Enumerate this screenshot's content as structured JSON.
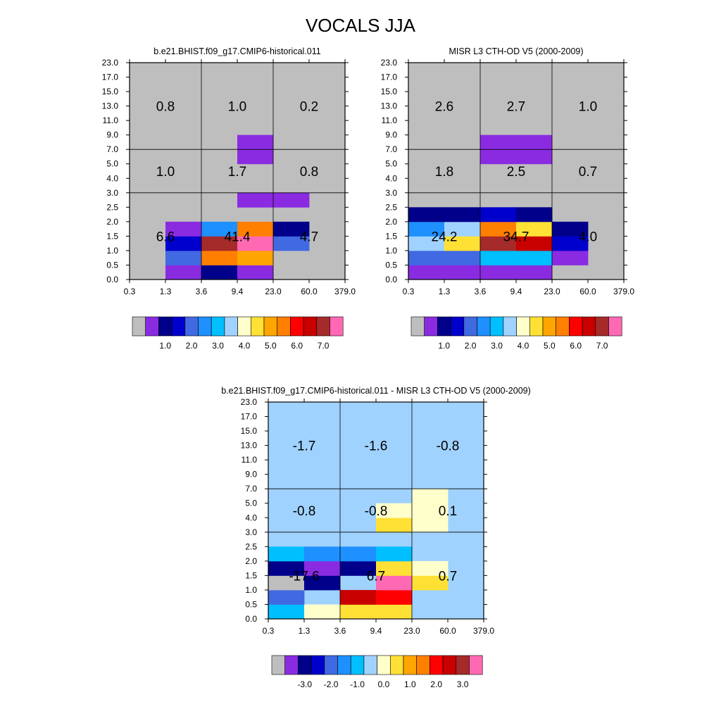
{
  "figure": {
    "title": "VOCALS JJA"
  },
  "chart_data": [
    {
      "type": "heatmap",
      "title": "b.e21.BHIST.f09_g17.CMIP6-historical.011",
      "xlabel": "",
      "ylabel": "",
      "x_ticks": [
        "0.3",
        "1.3",
        "3.6",
        "9.4",
        "23.0",
        "60.0",
        "379.0"
      ],
      "y_ticks": [
        "0.0",
        "0.5",
        "1.0",
        "1.5",
        "2.0",
        "2.5",
        "3.0",
        "4.0",
        "5.0",
        "7.0",
        "9.0",
        "11.0",
        "13.0",
        "15.0",
        "17.0",
        "23.0"
      ],
      "background_color": "#bebebe",
      "cells": [
        {
          "x": 1,
          "y": 0,
          "color": "#8a2be2"
        },
        {
          "x": 2,
          "y": 0,
          "color": "#00008b"
        },
        {
          "x": 3,
          "y": 0,
          "color": "#8a2be2"
        },
        {
          "x": 1,
          "y": 1,
          "color": "#4169e1"
        },
        {
          "x": 2,
          "y": 1,
          "color": "#ff7f00"
        },
        {
          "x": 3,
          "y": 1,
          "color": "#ffa500"
        },
        {
          "x": 1,
          "y": 2,
          "color": "#0000cd"
        },
        {
          "x": 2,
          "y": 2,
          "color": "#a52a2a"
        },
        {
          "x": 3,
          "y": 2,
          "color": "#ff69b4"
        },
        {
          "x": 4,
          "y": 2,
          "color": "#4169e1"
        },
        {
          "x": 1,
          "y": 3,
          "color": "#8a2be2"
        },
        {
          "x": 2,
          "y": 3,
          "color": "#1e90ff"
        },
        {
          "x": 3,
          "y": 3,
          "color": "#ff7f00"
        },
        {
          "x": 4,
          "y": 3,
          "color": "#00008b"
        },
        {
          "x": 3,
          "y": 5,
          "color": "#8a2be2"
        },
        {
          "x": 4,
          "y": 5,
          "color": "#8a2be2"
        },
        {
          "x": 3,
          "y": 9,
          "color": "#8a2be2"
        },
        {
          "x": 3,
          "y": 8,
          "color": "#8a2be2"
        }
      ],
      "box_values": [
        {
          "label": "0.8",
          "col": 0,
          "row": 2
        },
        {
          "label": "1.0",
          "col": 1,
          "row": 2
        },
        {
          "label": "0.2",
          "col": 2,
          "row": 2
        },
        {
          "label": "1.0",
          "col": 0,
          "row": 1
        },
        {
          "label": "1.7",
          "col": 1,
          "row": 1
        },
        {
          "label": "0.8",
          "col": 2,
          "row": 1
        },
        {
          "label": "6.6",
          "col": 0,
          "row": 0
        },
        {
          "label": "41.4",
          "col": 1,
          "row": 0
        },
        {
          "label": "4.7",
          "col": 2,
          "row": 0
        }
      ],
      "colorbar": {
        "colors": [
          "#bebebe",
          "#8a2be2",
          "#00008b",
          "#0000cd",
          "#4169e1",
          "#1e90ff",
          "#00bfff",
          "#a0d2ff",
          "#ffffcc",
          "#ffe135",
          "#ffa500",
          "#ff7f00",
          "#ff0000",
          "#c80000",
          "#a52a2a",
          "#ff69b4"
        ],
        "labels": [
          "1.0",
          "2.0",
          "3.0",
          "4.0",
          "5.0",
          "6.0",
          "7.0"
        ]
      }
    },
    {
      "type": "heatmap",
      "title": "MISR L3 CTH-OD V5 (2000-2009)",
      "xlabel": "",
      "ylabel": "",
      "x_ticks": [
        "0.3",
        "1.3",
        "3.6",
        "9.4",
        "23.0",
        "60.0",
        "379.0"
      ],
      "y_ticks": [
        "0.0",
        "0.5",
        "1.0",
        "1.5",
        "2.0",
        "2.5",
        "3.0",
        "4.0",
        "5.0",
        "7.0",
        "9.0",
        "11.0",
        "13.0",
        "15.0",
        "17.0",
        "23.0"
      ],
      "background_color": "#bebebe",
      "cells": [
        {
          "x": 0,
          "y": 0,
          "color": "#8a2be2"
        },
        {
          "x": 1,
          "y": 0,
          "color": "#8a2be2"
        },
        {
          "x": 2,
          "y": 0,
          "color": "#8a2be2"
        },
        {
          "x": 3,
          "y": 0,
          "color": "#8a2be2"
        },
        {
          "x": 0,
          "y": 1,
          "color": "#4169e1"
        },
        {
          "x": 1,
          "y": 1,
          "color": "#4169e1"
        },
        {
          "x": 2,
          "y": 1,
          "color": "#00bfff"
        },
        {
          "x": 3,
          "y": 1,
          "color": "#00bfff"
        },
        {
          "x": 4,
          "y": 1,
          "color": "#8a2be2"
        },
        {
          "x": 0,
          "y": 2,
          "color": "#a0d2ff"
        },
        {
          "x": 1,
          "y": 2,
          "color": "#ffe135"
        },
        {
          "x": 2,
          "y": 2,
          "color": "#a52a2a"
        },
        {
          "x": 3,
          "y": 2,
          "color": "#c80000"
        },
        {
          "x": 4,
          "y": 2,
          "color": "#0000cd"
        },
        {
          "x": 0,
          "y": 3,
          "color": "#1e90ff"
        },
        {
          "x": 1,
          "y": 3,
          "color": "#a0d2ff"
        },
        {
          "x": 2,
          "y": 3,
          "color": "#ff7f00"
        },
        {
          "x": 3,
          "y": 3,
          "color": "#ffe135"
        },
        {
          "x": 4,
          "y": 3,
          "color": "#00008b"
        },
        {
          "x": 0,
          "y": 4,
          "color": "#00008b"
        },
        {
          "x": 1,
          "y": 4,
          "color": "#00008b"
        },
        {
          "x": 2,
          "y": 4,
          "color": "#0000cd"
        },
        {
          "x": 3,
          "y": 4,
          "color": "#00008b"
        },
        {
          "x": 2,
          "y": 8,
          "color": "#8a2be2"
        },
        {
          "x": 3,
          "y": 8,
          "color": "#8a2be2"
        },
        {
          "x": 2,
          "y": 9,
          "color": "#8a2be2"
        },
        {
          "x": 3,
          "y": 9,
          "color": "#8a2be2"
        }
      ],
      "box_values": [
        {
          "label": "2.6",
          "col": 0,
          "row": 2
        },
        {
          "label": "2.7",
          "col": 1,
          "row": 2
        },
        {
          "label": "1.0",
          "col": 2,
          "row": 2
        },
        {
          "label": "1.8",
          "col": 0,
          "row": 1
        },
        {
          "label": "2.5",
          "col": 1,
          "row": 1
        },
        {
          "label": "0.7",
          "col": 2,
          "row": 1
        },
        {
          "label": "24.2",
          "col": 0,
          "row": 0
        },
        {
          "label": "34.7",
          "col": 1,
          "row": 0
        },
        {
          "label": "4.0",
          "col": 2,
          "row": 0
        }
      ],
      "colorbar": {
        "colors": [
          "#bebebe",
          "#8a2be2",
          "#00008b",
          "#0000cd",
          "#4169e1",
          "#1e90ff",
          "#00bfff",
          "#a0d2ff",
          "#ffffcc",
          "#ffe135",
          "#ffa500",
          "#ff7f00",
          "#ff0000",
          "#c80000",
          "#a52a2a",
          "#ff69b4"
        ],
        "labels": [
          "1.0",
          "2.0",
          "3.0",
          "4.0",
          "5.0",
          "6.0",
          "7.0"
        ]
      }
    },
    {
      "type": "heatmap",
      "title": "b.e21.BHIST.f09_g17.CMIP6-historical.011 - MISR L3 CTH-OD V5 (2000-2009)",
      "xlabel": "",
      "ylabel": "",
      "x_ticks": [
        "0.3",
        "1.3",
        "3.6",
        "9.4",
        "23.0",
        "60.0",
        "379.0"
      ],
      "y_ticks": [
        "0.0",
        "0.5",
        "1.0",
        "1.5",
        "2.0",
        "2.5",
        "3.0",
        "4.0",
        "5.0",
        "7.0",
        "9.0",
        "11.0",
        "13.0",
        "15.0",
        "17.0",
        "23.0"
      ],
      "background_color": "#a0d2ff",
      "cells": [
        {
          "x": 0,
          "y": 0,
          "color": "#00bfff"
        },
        {
          "x": 1,
          "y": 0,
          "color": "#ffffcc"
        },
        {
          "x": 2,
          "y": 0,
          "color": "#ffe135"
        },
        {
          "x": 3,
          "y": 0,
          "color": "#ffe135"
        },
        {
          "x": 0,
          "y": 1,
          "color": "#4169e1"
        },
        {
          "x": 2,
          "y": 1,
          "color": "#c80000"
        },
        {
          "x": 3,
          "y": 1,
          "color": "#ff0000"
        },
        {
          "x": 0,
          "y": 2,
          "color": "#bebebe"
        },
        {
          "x": 1,
          "y": 2,
          "color": "#00008b"
        },
        {
          "x": 3,
          "y": 2,
          "color": "#ff69b4"
        },
        {
          "x": 4,
          "y": 2,
          "color": "#ffe135"
        },
        {
          "x": 0,
          "y": 3,
          "color": "#00008b"
        },
        {
          "x": 1,
          "y": 3,
          "color": "#8a2be2"
        },
        {
          "x": 2,
          "y": 3,
          "color": "#00008b"
        },
        {
          "x": 3,
          "y": 3,
          "color": "#ffe135"
        },
        {
          "x": 4,
          "y": 3,
          "color": "#ffffcc"
        },
        {
          "x": 0,
          "y": 4,
          "color": "#00bfff"
        },
        {
          "x": 1,
          "y": 4,
          "color": "#1e90ff"
        },
        {
          "x": 2,
          "y": 4,
          "color": "#1e90ff"
        },
        {
          "x": 3,
          "y": 4,
          "color": "#00bfff"
        },
        {
          "x": 3,
          "y": 6,
          "color": "#ffe135"
        },
        {
          "x": 4,
          "y": 6,
          "color": "#ffffcc"
        },
        {
          "x": 3,
          "y": 7,
          "color": "#ffffcc"
        },
        {
          "x": 4,
          "y": 7,
          "color": "#ffffcc"
        },
        {
          "x": 4,
          "y": 8,
          "color": "#ffffcc"
        }
      ],
      "box_values": [
        {
          "label": "-1.7",
          "col": 0,
          "row": 2
        },
        {
          "label": "-1.6",
          "col": 1,
          "row": 2
        },
        {
          "label": "-0.8",
          "col": 2,
          "row": 2
        },
        {
          "label": "-0.8",
          "col": 0,
          "row": 1
        },
        {
          "label": "-0.8",
          "col": 1,
          "row": 1
        },
        {
          "label": "0.1",
          "col": 2,
          "row": 1
        },
        {
          "label": "-17.6",
          "col": 0,
          "row": 0
        },
        {
          "label": "6.7",
          "col": 1,
          "row": 0
        },
        {
          "label": "0.7",
          "col": 2,
          "row": 0
        }
      ],
      "colorbar": {
        "colors": [
          "#bebebe",
          "#8a2be2",
          "#00008b",
          "#0000cd",
          "#4169e1",
          "#1e90ff",
          "#00bfff",
          "#a0d2ff",
          "#ffffcc",
          "#ffe135",
          "#ffa500",
          "#ff7f00",
          "#ff0000",
          "#c80000",
          "#a52a2a",
          "#ff69b4"
        ],
        "labels": [
          "-3.0",
          "-2.0",
          "-1.0",
          "0.0",
          "1.0",
          "2.0",
          "3.0"
        ]
      }
    }
  ]
}
